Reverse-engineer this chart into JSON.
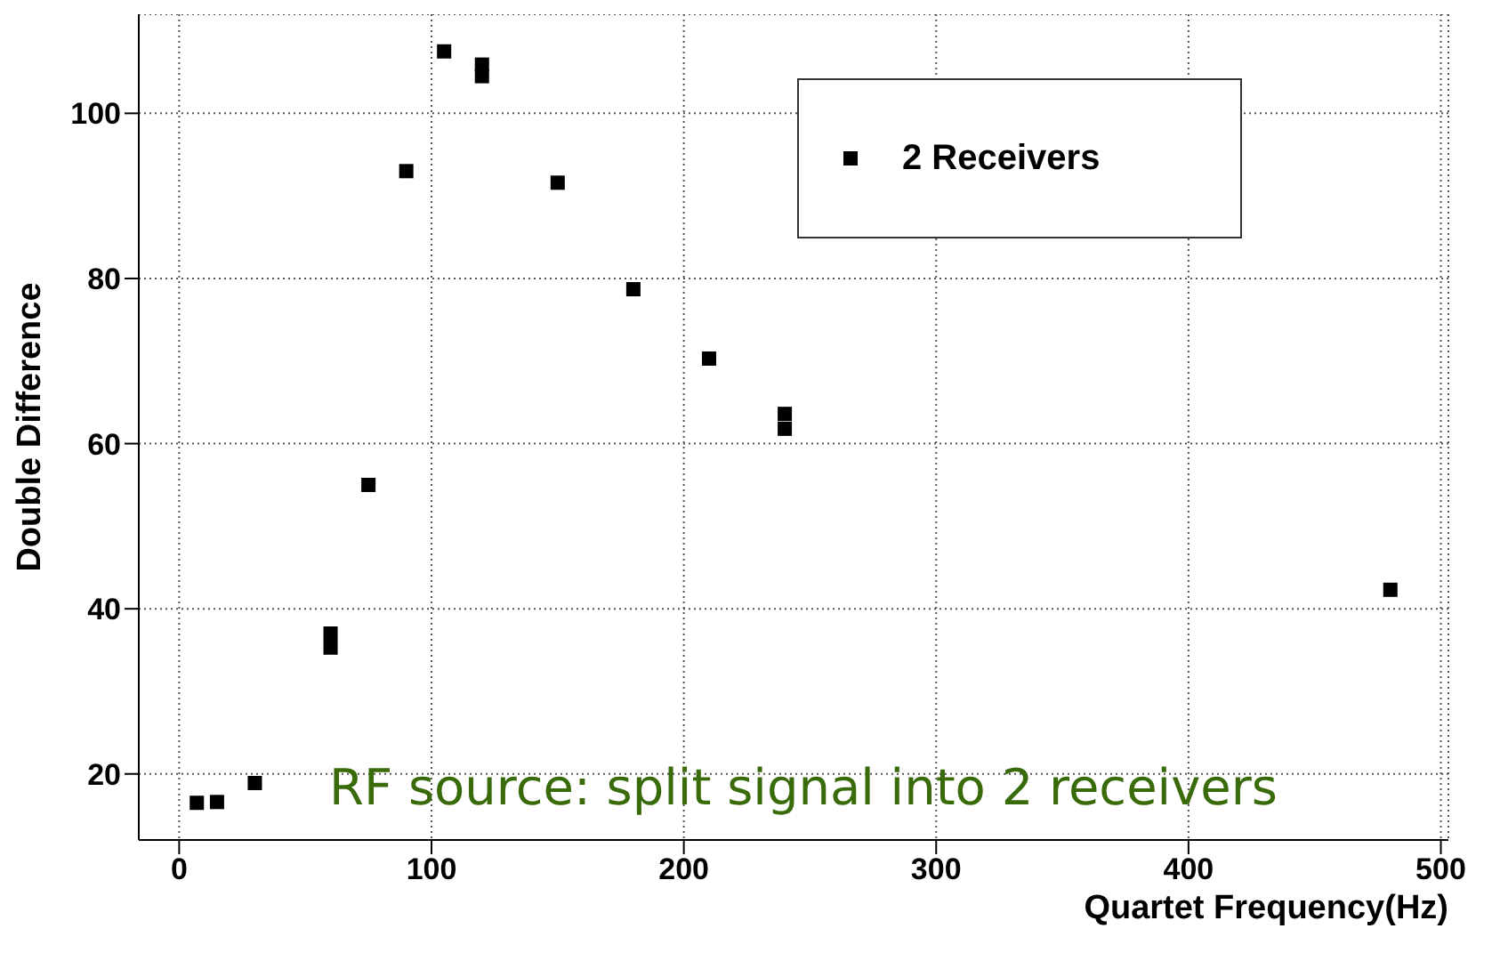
{
  "chart_data": {
    "type": "scatter",
    "xlabel": "Quartet Frequency(Hz)",
    "ylabel": "Double Difference",
    "annotations": [
      "RF source: split signal into 2 receivers"
    ],
    "xlim": [
      -16,
      503
    ],
    "ylim": [
      12,
      112
    ],
    "xticks": [
      0,
      100,
      200,
      300,
      400,
      500
    ],
    "yticks": [
      20,
      40,
      60,
      80,
      100
    ],
    "grid": true,
    "legend": "top right",
    "marker": "square",
    "series": [
      {
        "name": "2 Receivers",
        "color": "#000000",
        "x": [
          7,
          15,
          30,
          60,
          60,
          75,
          90,
          105,
          120,
          120,
          150,
          180,
          210,
          240,
          240,
          480
        ],
        "values": [
          16.5,
          16.6,
          18.9,
          37,
          35.3,
          55,
          93,
          107.5,
          105.9,
          104.5,
          91.6,
          78.7,
          70.3,
          63.6,
          61.8,
          42.3
        ]
      }
    ]
  }
}
